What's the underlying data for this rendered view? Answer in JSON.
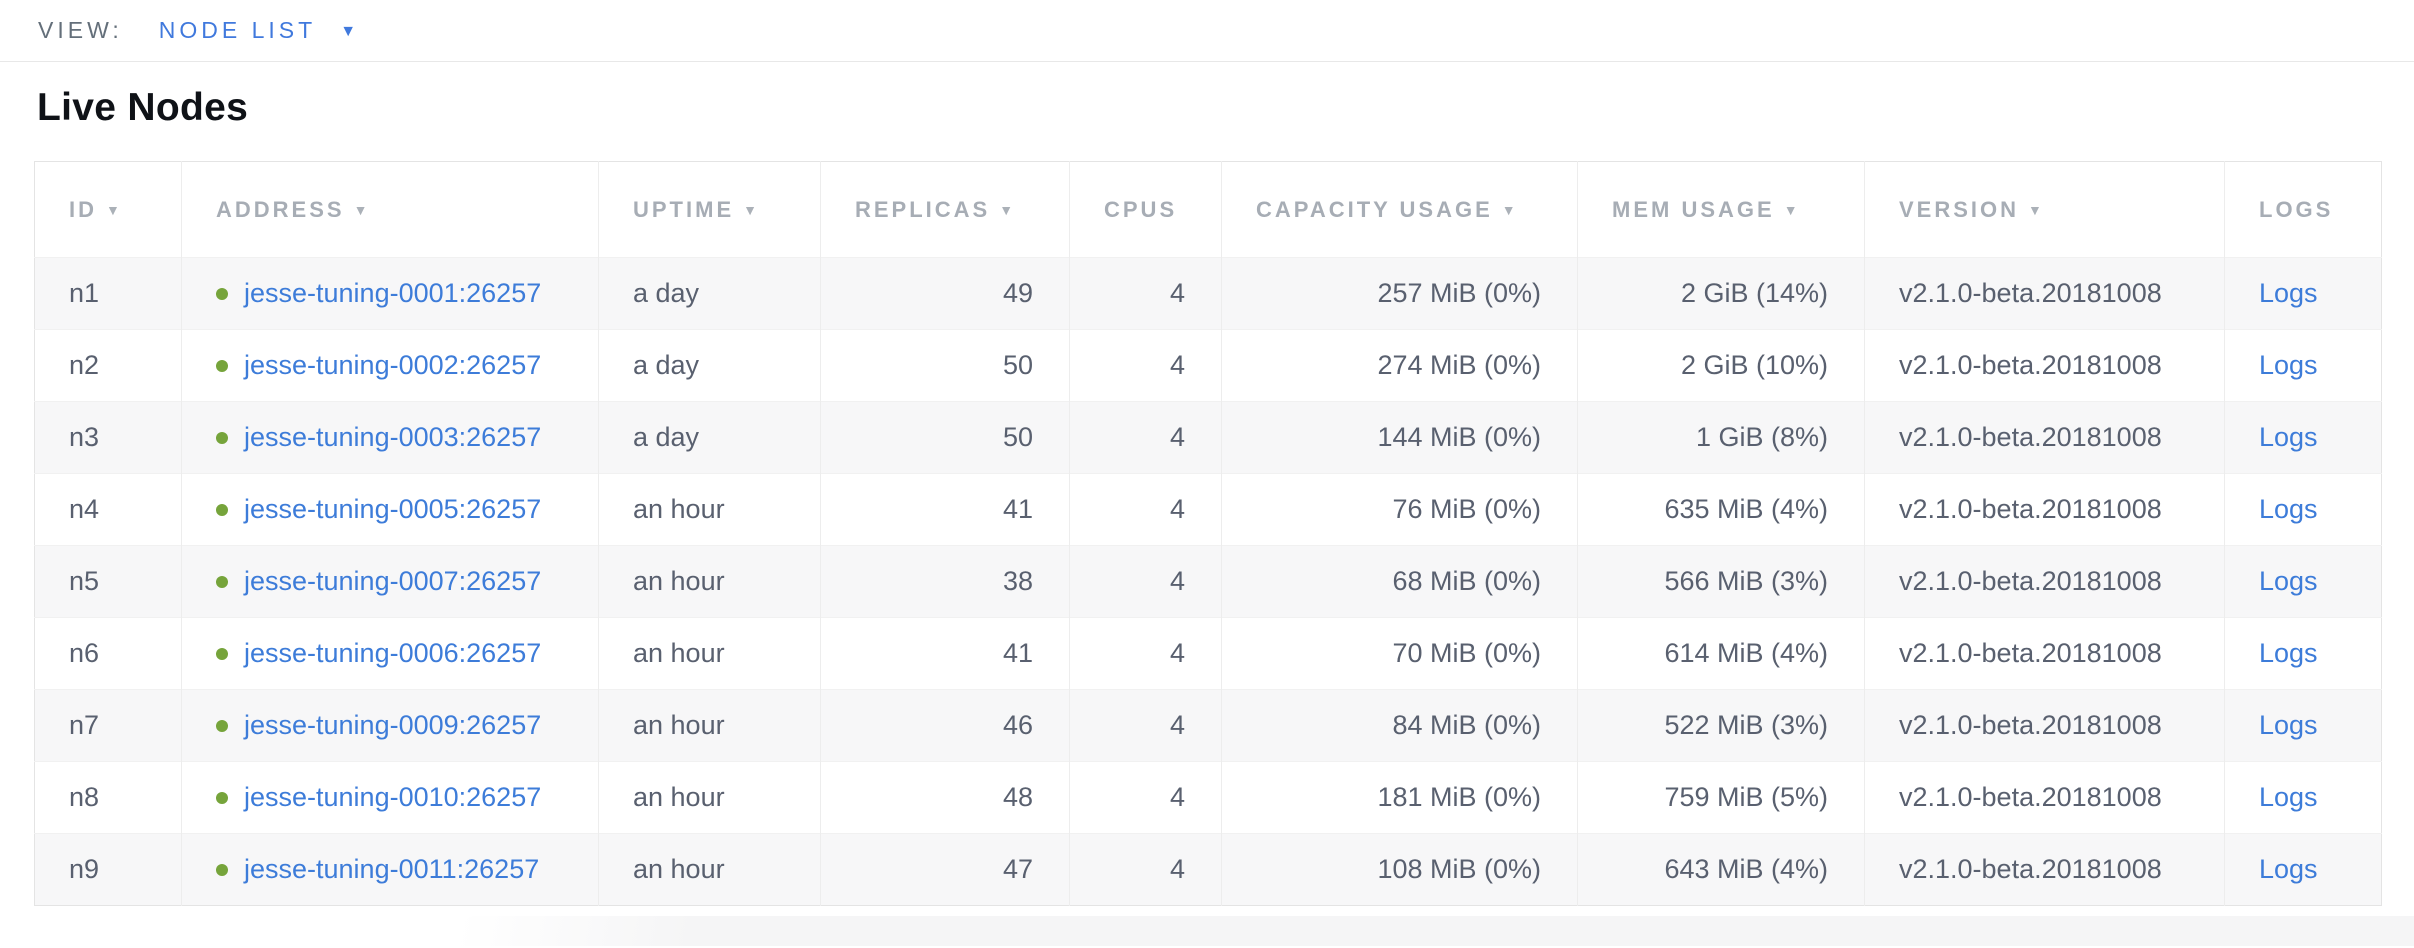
{
  "toolbar": {
    "view_label": "VIEW:",
    "view_value": "NODE LIST",
    "caret_icon": "▼"
  },
  "page": {
    "title": "Live Nodes"
  },
  "table": {
    "sort_icon": "▼",
    "columns": [
      {
        "key": "id",
        "label": "ID",
        "sortable": true,
        "align": "left"
      },
      {
        "key": "address",
        "label": "ADDRESS",
        "sortable": true,
        "align": "left"
      },
      {
        "key": "uptime",
        "label": "UPTIME",
        "sortable": true,
        "align": "left"
      },
      {
        "key": "replicas",
        "label": "REPLICAS",
        "sortable": true,
        "align": "right"
      },
      {
        "key": "cpus",
        "label": "CPUS",
        "sortable": false,
        "align": "right"
      },
      {
        "key": "capacity",
        "label": "CAPACITY USAGE",
        "sortable": true,
        "align": "right"
      },
      {
        "key": "mem",
        "label": "MEM USAGE",
        "sortable": true,
        "align": "right"
      },
      {
        "key": "version",
        "label": "VERSION",
        "sortable": true,
        "align": "left"
      },
      {
        "key": "logs",
        "label": "LOGS",
        "sortable": false,
        "align": "left"
      }
    ],
    "rows": [
      {
        "id": "n1",
        "status": "healthy",
        "address": "jesse-tuning-0001:26257",
        "uptime": "a day",
        "replicas": "49",
        "cpus": "4",
        "capacity": "257 MiB (0%)",
        "mem": "2 GiB (14%)",
        "version": "v2.1.0-beta.20181008",
        "logs": "Logs"
      },
      {
        "id": "n2",
        "status": "healthy",
        "address": "jesse-tuning-0002:26257",
        "uptime": "a day",
        "replicas": "50",
        "cpus": "4",
        "capacity": "274 MiB (0%)",
        "mem": "2 GiB (10%)",
        "version": "v2.1.0-beta.20181008",
        "logs": "Logs"
      },
      {
        "id": "n3",
        "status": "healthy",
        "address": "jesse-tuning-0003:26257",
        "uptime": "a day",
        "replicas": "50",
        "cpus": "4",
        "capacity": "144 MiB (0%)",
        "mem": "1 GiB (8%)",
        "version": "v2.1.0-beta.20181008",
        "logs": "Logs"
      },
      {
        "id": "n4",
        "status": "healthy",
        "address": "jesse-tuning-0005:26257",
        "uptime": "an hour",
        "replicas": "41",
        "cpus": "4",
        "capacity": "76 MiB (0%)",
        "mem": "635 MiB (4%)",
        "version": "v2.1.0-beta.20181008",
        "logs": "Logs"
      },
      {
        "id": "n5",
        "status": "healthy",
        "address": "jesse-tuning-0007:26257",
        "uptime": "an hour",
        "replicas": "38",
        "cpus": "4",
        "capacity": "68 MiB (0%)",
        "mem": "566 MiB (3%)",
        "version": "v2.1.0-beta.20181008",
        "logs": "Logs"
      },
      {
        "id": "n6",
        "status": "healthy",
        "address": "jesse-tuning-0006:26257",
        "uptime": "an hour",
        "replicas": "41",
        "cpus": "4",
        "capacity": "70 MiB (0%)",
        "mem": "614 MiB (4%)",
        "version": "v2.1.0-beta.20181008",
        "logs": "Logs"
      },
      {
        "id": "n7",
        "status": "healthy",
        "address": "jesse-tuning-0009:26257",
        "uptime": "an hour",
        "replicas": "46",
        "cpus": "4",
        "capacity": "84 MiB (0%)",
        "mem": "522 MiB (3%)",
        "version": "v2.1.0-beta.20181008",
        "logs": "Logs"
      },
      {
        "id": "n8",
        "status": "healthy",
        "address": "jesse-tuning-0010:26257",
        "uptime": "an hour",
        "replicas": "48",
        "cpus": "4",
        "capacity": "181 MiB (0%)",
        "mem": "759 MiB (5%)",
        "version": "v2.1.0-beta.20181008",
        "logs": "Logs"
      },
      {
        "id": "n9",
        "status": "healthy",
        "address": "jesse-tuning-0011:26257",
        "uptime": "an hour",
        "replicas": "47",
        "cpus": "4",
        "capacity": "108 MiB (0%)",
        "mem": "643 MiB (4%)",
        "version": "v2.1.0-beta.20181008",
        "logs": "Logs"
      }
    ]
  },
  "colors": {
    "accent_blue": "#3d7cd9",
    "healthy_green": "#76a43b",
    "header_gray": "#a7adb5",
    "body_text": "#59606f",
    "stripe": "#f7f7f8"
  }
}
